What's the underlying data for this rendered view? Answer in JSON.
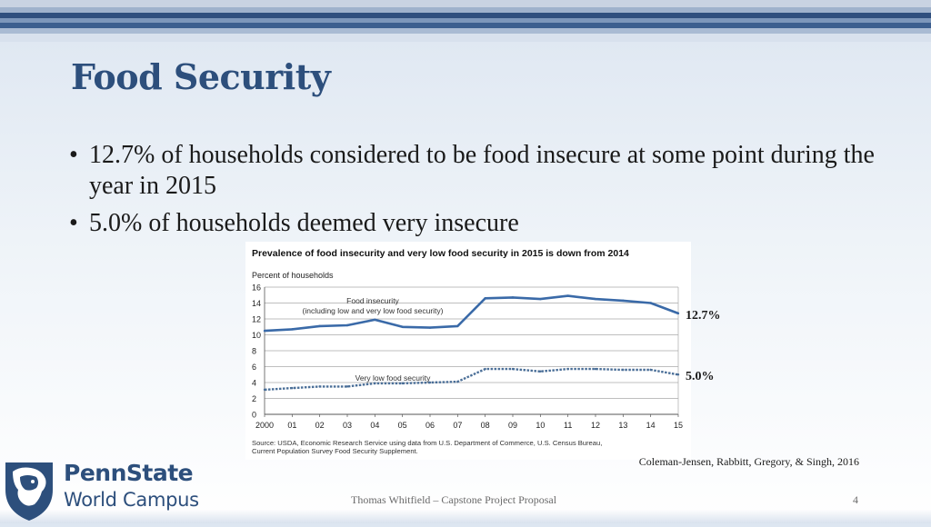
{
  "slide": {
    "title": "Food Security",
    "bullets": [
      "12.7% of households considered to be food insecure at some point during the year in 2015",
      "5.0% of households deemed very insecure"
    ],
    "bullet_symbol": "•",
    "callouts": {
      "food_insecurity": "12.7%",
      "very_low": "5.0%"
    },
    "citation": "Coleman-Jensen, Rabbitt, Gregory, & Singh, 2016",
    "footer": "Thomas Whitfield – Capstone Project Proposal",
    "page_number": "4"
  },
  "logo": {
    "line1": "PennState",
    "line2": "World Campus"
  },
  "colors": {
    "title": "#2d4f7c",
    "series_solid": "#3a6aa8",
    "series_dotted": "#4b6f98",
    "band_dark": "#2f4f7e"
  },
  "chart_data": {
    "type": "line",
    "title": "Prevalence of food insecurity and very low food security in 2015 is down from 2014",
    "ylabel": "Percent of households",
    "ylim": [
      0,
      16
    ],
    "yticks": [
      "0",
      "2",
      "4",
      "6",
      "8",
      "10",
      "12",
      "14",
      "16"
    ],
    "categories": [
      "2000",
      "01",
      "02",
      "03",
      "04",
      "05",
      "06",
      "07",
      "08",
      "09",
      "10",
      "11",
      "12",
      "13",
      "14",
      "15"
    ],
    "series": [
      {
        "name": "Food insecurity (including low and very low food security)",
        "label_lines": [
          "Food insecurity",
          "(including low and very low food security)"
        ],
        "values": [
          10.5,
          10.7,
          11.1,
          11.2,
          11.9,
          11.0,
          10.9,
          11.1,
          14.6,
          14.7,
          14.5,
          14.9,
          14.5,
          14.3,
          14.0,
          12.7
        ]
      },
      {
        "name": "Very low food security",
        "label_lines": [
          "Very low food security"
        ],
        "values": [
          3.1,
          3.3,
          3.5,
          3.5,
          3.9,
          3.9,
          4.0,
          4.1,
          5.7,
          5.7,
          5.4,
          5.7,
          5.7,
          5.6,
          5.6,
          5.0
        ]
      }
    ],
    "source": [
      "Source: USDA, Economic Research Service using data from U.S. Department of Commerce, U.S. Census Bureau,",
      "Current Population Survey Food Security Supplement."
    ]
  }
}
